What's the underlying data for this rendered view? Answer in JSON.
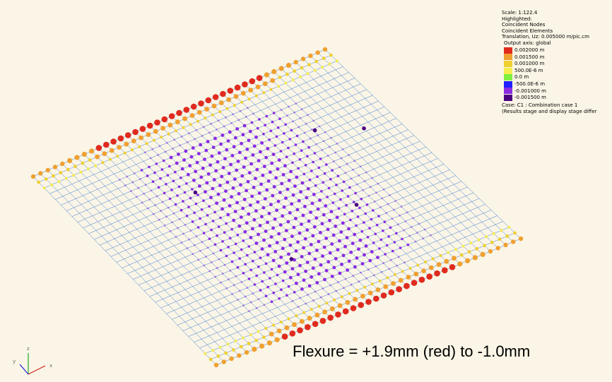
{
  "info": {
    "scale": "Scale: 1:122.4",
    "highlighted": "Highlighted:",
    "coincident_nodes": "Coincident Nodes",
    "coincident_elements": "Coincident Elements",
    "translation": "Translation, Uz: 0.005000 m/pic.cm",
    "output_axis": "Output axis: global",
    "case": "Case: C1 : Combination case 1",
    "stage_note": "(Results stage and display stage differ"
  },
  "legend": [
    {
      "label": "0.002000 m",
      "color": "#e02a1e"
    },
    {
      "label": "0.001500 m",
      "color": "#f0a030"
    },
    {
      "label": "0.001000 m",
      "color": "#f0d030"
    },
    {
      "label": "500.0E-6 m",
      "color": "#f5ec50"
    },
    {
      "label": "0.0 m",
      "color": "#80f040"
    },
    {
      "label": "-500.0E-6 m",
      "color": "#2020ff"
    },
    {
      "label": "-0.001000 m",
      "color": "#8a2be2"
    },
    {
      "label": "-0.001500 m",
      "color": "#4b0082"
    }
  ],
  "caption": "Flexure = +1.9mm (red) to -1.0mm",
  "axes": {
    "x": "x",
    "y": "y",
    "z": "z"
  }
}
